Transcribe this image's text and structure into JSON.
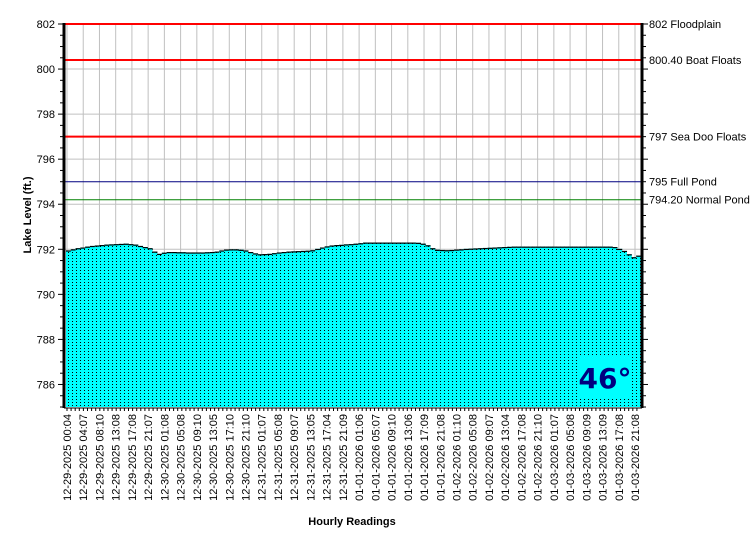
{
  "chart_data": {
    "type": "bar",
    "xlabel": "Hourly Readings",
    "ylabel": "Lake Level (ft.)",
    "ylim": [
      785,
      802
    ],
    "yticks": [
      786,
      788,
      790,
      792,
      794,
      796,
      798,
      800,
      802
    ],
    "grid": true,
    "bar_color": "#00ffff",
    "x_tick_labels": [
      "12-29-2025 00:04",
      "12-29-2025 04:07",
      "12-29-2025 08:10",
      "12-29-2025 13:08",
      "12-29-2025 17:08",
      "12-29-2025 21:07",
      "12-30-2025 01:08",
      "12-30-2025 05:08",
      "12-30-2025 09:10",
      "12-30-2025 13:05",
      "12-30-2025 17:10",
      "12-30-2025 21:10",
      "12-31-2025 01:07",
      "12-31-2025 05:08",
      "12-31-2025 09:07",
      "12-31-2025 13:05",
      "12-31-2025 17:04",
      "12-31-2025 21:09",
      "01-01-2026 01:06",
      "01-01-2026 05:07",
      "01-01-2026 09:10",
      "01-01-2026 13:06",
      "01-01-2026 17:09",
      "01-01-2026 21:08",
      "01-02-2026 01:10",
      "01-02-2026 05:08",
      "01-02-2026 09:07",
      "01-02-2026 13:04",
      "01-02-2026 17:08",
      "01-02-2026 21:10",
      "01-03-2026 01:07",
      "01-03-2026 05:08",
      "01-03-2026 09:09",
      "01-03-2026 13:09",
      "01-03-2026 17:08",
      "01-03-2026 21:08"
    ],
    "values": [
      791.95,
      792.0,
      792.05,
      792.08,
      792.12,
      792.15,
      792.17,
      792.19,
      792.21,
      792.22,
      792.23,
      792.24,
      792.25,
      792.23,
      792.21,
      792.15,
      792.1,
      792.05,
      791.9,
      791.8,
      791.85,
      791.88,
      791.88,
      791.87,
      791.87,
      791.86,
      791.86,
      791.86,
      791.86,
      791.87,
      791.88,
      791.9,
      791.95,
      791.99,
      792.0,
      792.0,
      791.98,
      791.95,
      791.88,
      791.82,
      791.78,
      791.79,
      791.8,
      791.83,
      791.86,
      791.88,
      791.9,
      791.91,
      791.92,
      791.93,
      791.94,
      791.96,
      792.02,
      792.08,
      792.13,
      792.17,
      792.19,
      792.2,
      792.22,
      792.23,
      792.25,
      792.27,
      792.3,
      792.3,
      792.3,
      792.3,
      792.3,
      792.3,
      792.3,
      792.3,
      792.3,
      792.3,
      792.3,
      792.29,
      792.25,
      792.18,
      792.05,
      791.98,
      791.97,
      791.96,
      791.97,
      791.99,
      792.0,
      792.02,
      792.03,
      792.04,
      792.05,
      792.06,
      792.07,
      792.08,
      792.09,
      792.1,
      792.11,
      792.12,
      792.12,
      792.12,
      792.12,
      792.12,
      792.12,
      792.12,
      792.12,
      792.12,
      792.12,
      792.12,
      792.12,
      792.12,
      792.12,
      792.12,
      792.12,
      792.12,
      792.12,
      792.12,
      792.12,
      792.12,
      792.1,
      792.02,
      791.93,
      791.78,
      791.65,
      791.72
    ],
    "reference_lines": [
      {
        "value": 802,
        "label": "802 Floodplain",
        "color": "#ff0000"
      },
      {
        "value": 800.4,
        "label": "800.40 Boat Floats",
        "color": "#ff0000"
      },
      {
        "value": 797,
        "label": "797 Sea Doo Floats",
        "color": "#ff0000"
      },
      {
        "value": 795,
        "label": "795 Full Pond",
        "color": "#000080"
      },
      {
        "value": 794.2,
        "label": "794.20 Normal Pond",
        "color": "#008000"
      }
    ]
  },
  "badge": {
    "text": "46°",
    "color": "#000080"
  }
}
